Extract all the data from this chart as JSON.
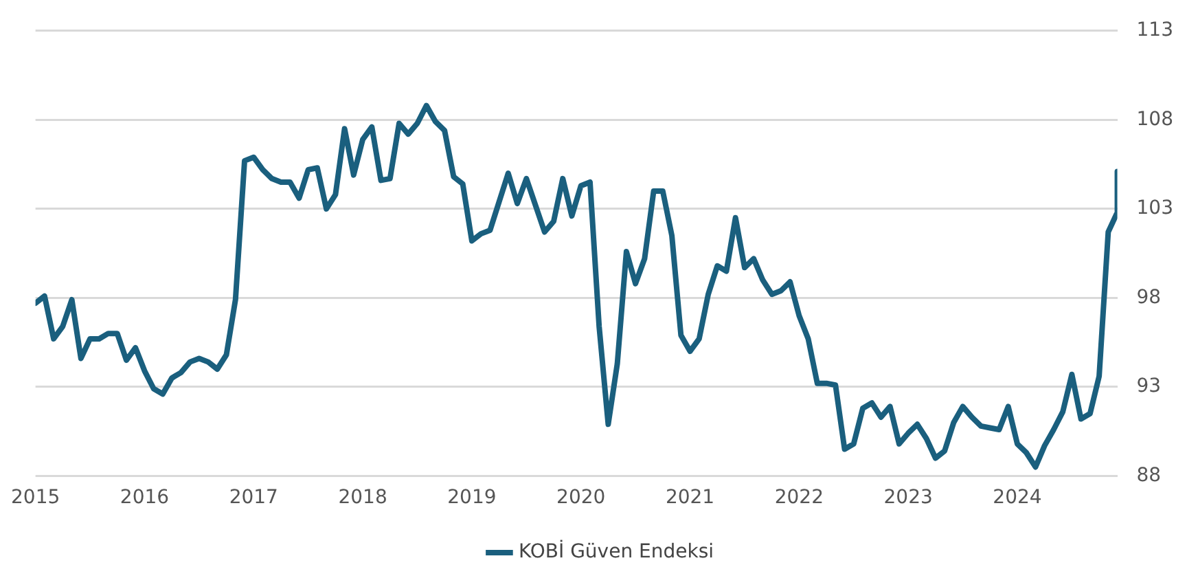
{
  "chart_data": {
    "type": "line",
    "x": [
      "2015-01",
      "2015-02",
      "2015-03",
      "2015-04",
      "2015-05",
      "2015-06",
      "2015-07",
      "2015-08",
      "2015-09",
      "2015-10",
      "2015-11",
      "2015-12",
      "2016-01",
      "2016-02",
      "2016-03",
      "2016-04",
      "2016-05",
      "2016-06",
      "2016-07",
      "2016-08",
      "2016-09",
      "2016-10",
      "2016-11",
      "2016-12",
      "2017-01",
      "2017-02",
      "2017-03",
      "2017-04",
      "2017-05",
      "2017-06",
      "2017-07",
      "2017-08",
      "2017-09",
      "2017-10",
      "2017-11",
      "2017-12",
      "2018-01",
      "2018-02",
      "2018-03",
      "2018-04",
      "2018-05",
      "2018-06",
      "2018-07",
      "2018-08",
      "2018-09",
      "2018-10",
      "2018-11",
      "2018-12",
      "2019-01",
      "2019-02",
      "2019-03",
      "2019-04",
      "2019-05",
      "2019-06",
      "2019-07",
      "2019-08",
      "2019-09",
      "2019-10",
      "2019-11",
      "2019-12",
      "2020-01",
      "2020-02",
      "2020-03",
      "2020-04",
      "2020-05",
      "2020-06",
      "2020-07",
      "2020-08",
      "2020-09",
      "2020-10",
      "2020-11",
      "2020-12",
      "2021-01",
      "2021-02",
      "2021-03",
      "2021-04",
      "2021-05",
      "2021-06",
      "2021-07",
      "2021-08",
      "2021-09",
      "2021-10",
      "2021-11",
      "2021-12",
      "2022-01",
      "2022-02",
      "2022-03",
      "2022-04",
      "2022-05",
      "2022-06",
      "2022-07",
      "2022-08",
      "2022-09",
      "2022-10",
      "2022-11",
      "2022-12",
      "2023-01",
      "2023-02",
      "2023-03",
      "2023-04",
      "2023-05",
      "2023-06",
      "2023-07",
      "2023-08",
      "2023-09",
      "2023-10",
      "2023-11",
      "2023-12",
      "2024-01",
      "2024-02",
      "2024-03",
      "2024-04",
      "2024-05",
      "2024-06",
      "2024-07",
      "2024-08",
      "2024-09",
      "2024-10",
      "2024-11",
      "2024-12",
      "2024-12"
    ],
    "series": [
      {
        "name": "KOBİ Güven Endeksi",
        "color": "#1a5f7e",
        "values": [
          97.7,
          98.1,
          95.7,
          96.4,
          97.9,
          94.6,
          95.7,
          95.7,
          96.0,
          96.0,
          94.5,
          95.2,
          93.9,
          92.9,
          92.6,
          93.5,
          93.8,
          94.4,
          94.6,
          94.4,
          94.0,
          94.8,
          97.9,
          105.7,
          105.9,
          105.2,
          104.7,
          104.5,
          104.5,
          103.6,
          105.2,
          105.3,
          103.0,
          103.8,
          107.5,
          104.9,
          106.9,
          107.6,
          104.6,
          104.7,
          107.8,
          107.2,
          107.8,
          108.8,
          107.9,
          107.4,
          104.8,
          104.4,
          101.2,
          101.6,
          101.8,
          103.4,
          105.0,
          103.3,
          104.7,
          103.2,
          101.7,
          102.3,
          104.7,
          102.6,
          104.3,
          104.5,
          96.4,
          90.9,
          94.3,
          100.6,
          98.8,
          100.2,
          104.0,
          104.0,
          101.5,
          95.9,
          95.0,
          95.7,
          98.2,
          99.8,
          99.5,
          102.5,
          99.7,
          100.2,
          99.0,
          98.2,
          98.4,
          98.9,
          97.0,
          95.7,
          93.2,
          93.2,
          93.1,
          89.5,
          89.8,
          91.8,
          92.1,
          91.3,
          91.9,
          89.8,
          90.4,
          90.9,
          90.1,
          89.0,
          89.4,
          91.0,
          91.9,
          91.3,
          90.8,
          90.7,
          90.6,
          91.9,
          89.8,
          89.3,
          88.5,
          89.7,
          90.6,
          91.6,
          93.7,
          91.2,
          91.5,
          93.6,
          101.7,
          102.8,
          105.1
        ]
      }
    ],
    "xlim": [
      "2015-01",
      "2024-12"
    ],
    "xticks": [
      "2015",
      "2016",
      "2017",
      "2018",
      "2019",
      "2020",
      "2021",
      "2022",
      "2023",
      "2024"
    ],
    "ylim": [
      88,
      113
    ],
    "yticks": [
      88,
      93,
      98,
      103,
      108,
      113
    ],
    "grid": "y",
    "legend": "bottom",
    "marker": "none",
    "line_style": "solid"
  }
}
